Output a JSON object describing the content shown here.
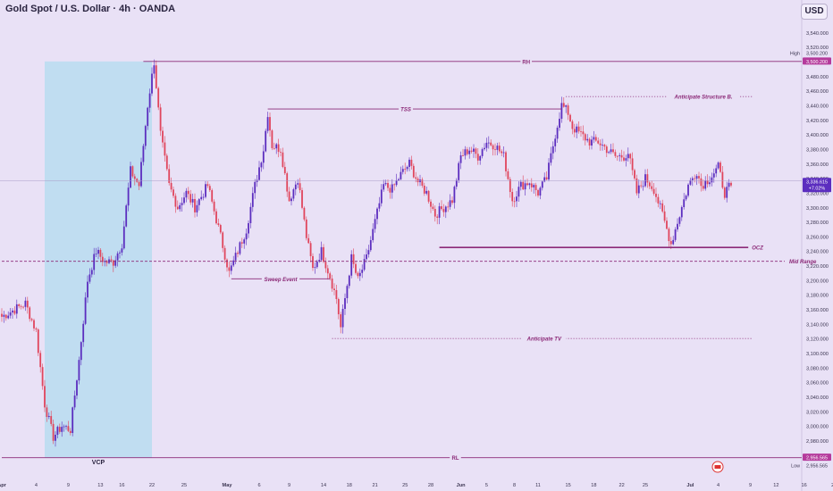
{
  "header": {
    "title": "Gold Spot / U.S. Dollar · 4h · OANDA",
    "currency_button": "USD"
  },
  "colors": {
    "background": "#e9e1f6",
    "bull": "#5b2dbf",
    "bear": "#e0455c",
    "level_line": "#8c2a78",
    "annotation": "#8c2a78",
    "vcp_box": "#b9dcf0",
    "price_tag": "#5b2dbf",
    "badge_pink": "#b53a9c"
  },
  "chart_data": {
    "type": "candlestick",
    "title": "Gold Spot / U.S. Dollar · 4h · OANDA",
    "ylim": [
      2950,
      3560
    ],
    "yticks": [
      2980,
      3000,
      3020,
      3040,
      3060,
      3080,
      3100,
      3120,
      3140,
      3160,
      3180,
      3200,
      3220,
      3240,
      3260,
      3280,
      3300,
      3320,
      3340,
      3360,
      3380,
      3400,
      3420,
      3440,
      3460,
      3480,
      3500,
      3520,
      3540
    ],
    "xticks": [
      {
        "label": "Apr",
        "bar": 0
      },
      {
        "label": "4",
        "bar": 16
      },
      {
        "label": "9",
        "bar": 31
      },
      {
        "label": "13",
        "bar": 46
      },
      {
        "label": "16",
        "bar": 56
      },
      {
        "label": "22",
        "bar": 70
      },
      {
        "label": "25",
        "bar": 85
      },
      {
        "label": "May",
        "bar": 105
      },
      {
        "label": "6",
        "bar": 120
      },
      {
        "label": "9",
        "bar": 134
      },
      {
        "label": "14",
        "bar": 150
      },
      {
        "label": "18",
        "bar": 162
      },
      {
        "label": "21",
        "bar": 174
      },
      {
        "label": "25",
        "bar": 188
      },
      {
        "label": "28",
        "bar": 200
      },
      {
        "label": "Jun",
        "bar": 214
      },
      {
        "label": "5",
        "bar": 226
      },
      {
        "label": "8",
        "bar": 239
      },
      {
        "label": "11",
        "bar": 250
      },
      {
        "label": "15",
        "bar": 264
      },
      {
        "label": "18",
        "bar": 276
      },
      {
        "label": "22",
        "bar": 289
      },
      {
        "label": "25",
        "bar": 300
      },
      {
        "label": "Jul",
        "bar": 321
      },
      {
        "label": "4",
        "bar": 334
      },
      {
        "label": "9",
        "bar": 349
      },
      {
        "label": "12",
        "bar": 361
      },
      {
        "label": "16",
        "bar": 374
      },
      {
        "label": "20",
        "bar": 388
      }
    ],
    "waypoints": [
      [
        0,
        3150
      ],
      [
        6,
        3160
      ],
      [
        11,
        3168
      ],
      [
        16,
        3130
      ],
      [
        20,
        3030
      ],
      [
        24,
        2985
      ],
      [
        28,
        3000
      ],
      [
        32,
        2995
      ],
      [
        36,
        3090
      ],
      [
        40,
        3200
      ],
      [
        44,
        3240
      ],
      [
        48,
        3225
      ],
      [
        52,
        3225
      ],
      [
        56,
        3250
      ],
      [
        60,
        3350
      ],
      [
        64,
        3330
      ],
      [
        68,
        3440
      ],
      [
        71,
        3500
      ],
      [
        74,
        3400
      ],
      [
        78,
        3330
      ],
      [
        82,
        3300
      ],
      [
        86,
        3320
      ],
      [
        90,
        3300
      ],
      [
        96,
        3330
      ],
      [
        102,
        3260
      ],
      [
        106,
        3210
      ],
      [
        110,
        3240
      ],
      [
        114,
        3270
      ],
      [
        118,
        3330
      ],
      [
        122,
        3380
      ],
      [
        124,
        3430
      ],
      [
        126,
        3385
      ],
      [
        130,
        3380
      ],
      [
        134,
        3310
      ],
      [
        138,
        3340
      ],
      [
        142,
        3260
      ],
      [
        145,
        3215
      ],
      [
        149,
        3240
      ],
      [
        153,
        3205
      ],
      [
        156,
        3175
      ],
      [
        158,
        3135
      ],
      [
        160,
        3175
      ],
      [
        163,
        3230
      ],
      [
        166,
        3200
      ],
      [
        170,
        3230
      ],
      [
        174,
        3280
      ],
      [
        178,
        3330
      ],
      [
        182,
        3325
      ],
      [
        186,
        3345
      ],
      [
        190,
        3360
      ],
      [
        194,
        3335
      ],
      [
        198,
        3320
      ],
      [
        202,
        3290
      ],
      [
        206,
        3300
      ],
      [
        210,
        3310
      ],
      [
        214,
        3370
      ],
      [
        218,
        3380
      ],
      [
        222,
        3370
      ],
      [
        226,
        3390
      ],
      [
        230,
        3385
      ],
      [
        234,
        3370
      ],
      [
        238,
        3310
      ],
      [
        242,
        3330
      ],
      [
        246,
        3335
      ],
      [
        250,
        3320
      ],
      [
        254,
        3340
      ],
      [
        258,
        3400
      ],
      [
        261,
        3440
      ],
      [
        264,
        3430
      ],
      [
        266,
        3410
      ],
      [
        270,
        3400
      ],
      [
        274,
        3390
      ],
      [
        278,
        3390
      ],
      [
        282,
        3380
      ],
      [
        286,
        3370
      ],
      [
        290,
        3370
      ],
      [
        292,
        3375
      ],
      [
        296,
        3320
      ],
      [
        300,
        3340
      ],
      [
        304,
        3325
      ],
      [
        308,
        3290
      ],
      [
        312,
        3250
      ],
      [
        316,
        3290
      ],
      [
        320,
        3330
      ],
      [
        324,
        3350
      ],
      [
        326,
        3330
      ],
      [
        330,
        3340
      ],
      [
        334,
        3355
      ],
      [
        337,
        3320
      ],
      [
        340,
        3330
      ]
    ],
    "levels": [
      {
        "label": "RH",
        "price": 3500.2,
        "style": "solid",
        "from_bar": 66,
        "to_bar": "end"
      },
      {
        "label": "TSS",
        "price": 3435,
        "style": "solid",
        "from_bar": 124,
        "to_bar": 261
      },
      {
        "label": "Anticipate Structure B.",
        "price": 3452,
        "style": "dotted",
        "from_bar": 263,
        "to_bar": 350
      },
      {
        "label": "OCZ",
        "price": 3245,
        "style": "solid-thick",
        "from_bar": 204,
        "to_bar": 348
      },
      {
        "label": "Mid Range",
        "price": 3226,
        "style": "dashed",
        "from_bar": 0,
        "to_bar": 365
      },
      {
        "label": "Sweep Event",
        "price": 3202,
        "style": "solid",
        "from_bar": 107,
        "to_bar": 153
      },
      {
        "label": "Anticipate TV",
        "price": 3120,
        "style": "dotted",
        "from_bar": 154,
        "to_bar": 350
      },
      {
        "label": "RL",
        "price": 2956.565,
        "style": "solid",
        "from_bar": 0,
        "to_bar": "end"
      }
    ],
    "vcp_box": {
      "label": "VCP",
      "from_bar": 20,
      "to_bar": 70
    },
    "price_tags": [
      {
        "label": "3,500.200",
        "price": 3500.2,
        "side_label": "High",
        "color": "#b53a9c"
      },
      {
        "label": "3,336.615",
        "sub": "+7.02%",
        "price": 3335,
        "color": "#5b2dbf"
      },
      {
        "label": "2,956.565",
        "price": 2956.565,
        "side_label": "Low",
        "color": "#b53a9c"
      }
    ],
    "last_price": 3336.615,
    "change": "+7.02%",
    "high": "3,500.200",
    "low": "2,956.565"
  }
}
